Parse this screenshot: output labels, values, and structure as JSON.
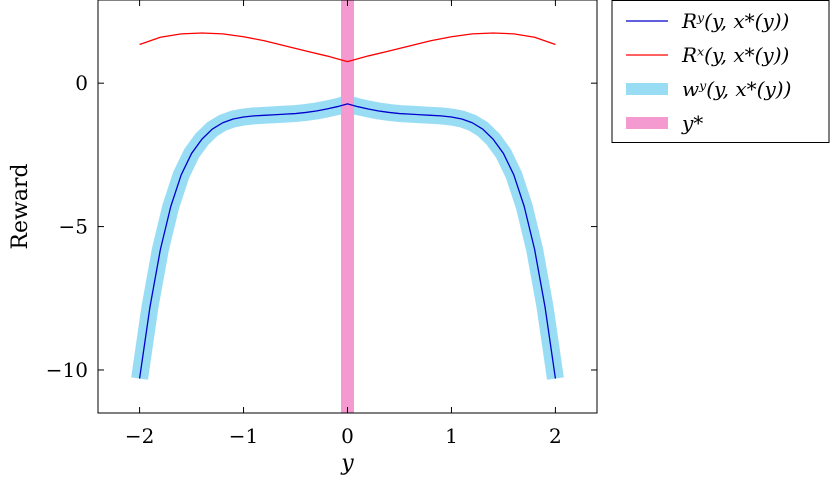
{
  "chart_data": {
    "type": "line",
    "title": "",
    "xlabel": "y",
    "ylabel": "Reward",
    "xlim": [
      -2.4,
      2.4
    ],
    "ylim": [
      -11.5,
      2.9
    ],
    "xticks": [
      -2,
      -1,
      0,
      1,
      2
    ],
    "yticks": [
      0,
      -5,
      -10
    ],
    "x_tick_labels": [
      "−2",
      "−1",
      "0",
      "1",
      "2"
    ],
    "y_tick_labels": [
      "0",
      "−5",
      "−10"
    ],
    "grid": false,
    "legend_position": "outside-top-right",
    "series": [
      {
        "name": "Rʸ(y, x*(y))",
        "color": "#0000cc",
        "style": "thin-line",
        "x": [
          -2.0,
          -1.9,
          -1.8,
          -1.7,
          -1.6,
          -1.5,
          -1.4,
          -1.3,
          -1.2,
          -1.1,
          -1.0,
          -0.9,
          -0.8,
          -0.7,
          -0.6,
          -0.5,
          -0.4,
          -0.3,
          -0.2,
          -0.1,
          0.0,
          0.1,
          0.2,
          0.3,
          0.4,
          0.5,
          0.6,
          0.7,
          0.8,
          0.9,
          1.0,
          1.1,
          1.2,
          1.3,
          1.4,
          1.5,
          1.6,
          1.7,
          1.8,
          1.9,
          2.0
        ],
        "y": [
          -10.3,
          -7.8,
          -5.8,
          -4.3,
          -3.2,
          -2.45,
          -1.95,
          -1.6,
          -1.38,
          -1.25,
          -1.18,
          -1.14,
          -1.12,
          -1.1,
          -1.08,
          -1.06,
          -1.02,
          -0.97,
          -0.9,
          -0.82,
          -0.72,
          -0.82,
          -0.9,
          -0.97,
          -1.02,
          -1.06,
          -1.08,
          -1.1,
          -1.12,
          -1.14,
          -1.18,
          -1.25,
          -1.38,
          -1.6,
          -1.95,
          -2.45,
          -3.2,
          -4.3,
          -5.8,
          -7.8,
          -10.3
        ]
      },
      {
        "name": "Rˣ(y, x*(y))",
        "color": "#ff0000",
        "style": "thin-line",
        "x": [
          -2.0,
          -1.8,
          -1.6,
          -1.4,
          -1.2,
          -1.0,
          -0.8,
          -0.6,
          -0.4,
          -0.2,
          0.0,
          0.2,
          0.4,
          0.6,
          0.8,
          1.0,
          1.2,
          1.4,
          1.6,
          1.8,
          2.0
        ],
        "y": [
          1.35,
          1.6,
          1.72,
          1.75,
          1.72,
          1.62,
          1.48,
          1.3,
          1.12,
          0.95,
          0.75,
          0.95,
          1.12,
          1.3,
          1.48,
          1.62,
          1.72,
          1.75,
          1.72,
          1.6,
          1.35
        ]
      },
      {
        "name": "wʸ(y, x*(y))",
        "color": "#99ddf5",
        "style": "thick-band",
        "x": [
          -2.0,
          -1.9,
          -1.8,
          -1.7,
          -1.6,
          -1.5,
          -1.4,
          -1.3,
          -1.2,
          -1.1,
          -1.0,
          -0.9,
          -0.8,
          -0.7,
          -0.6,
          -0.5,
          -0.4,
          -0.3,
          -0.2,
          -0.1,
          0.0,
          0.1,
          0.2,
          0.3,
          0.4,
          0.5,
          0.6,
          0.7,
          0.8,
          0.9,
          1.0,
          1.1,
          1.2,
          1.3,
          1.4,
          1.5,
          1.6,
          1.7,
          1.8,
          1.9,
          2.0
        ],
        "y": [
          -10.3,
          -7.8,
          -5.8,
          -4.3,
          -3.2,
          -2.45,
          -1.95,
          -1.6,
          -1.38,
          -1.25,
          -1.18,
          -1.14,
          -1.12,
          -1.1,
          -1.08,
          -1.06,
          -1.02,
          -0.97,
          -0.9,
          -0.82,
          -0.72,
          -0.82,
          -0.9,
          -0.97,
          -1.02,
          -1.06,
          -1.08,
          -1.1,
          -1.12,
          -1.14,
          -1.18,
          -1.25,
          -1.38,
          -1.6,
          -1.95,
          -2.45,
          -3.2,
          -4.3,
          -5.8,
          -7.8,
          -10.3
        ]
      },
      {
        "name": "y*",
        "color": "#f49ad0",
        "style": "vertical-band",
        "x_value": 0.0
      }
    ]
  }
}
